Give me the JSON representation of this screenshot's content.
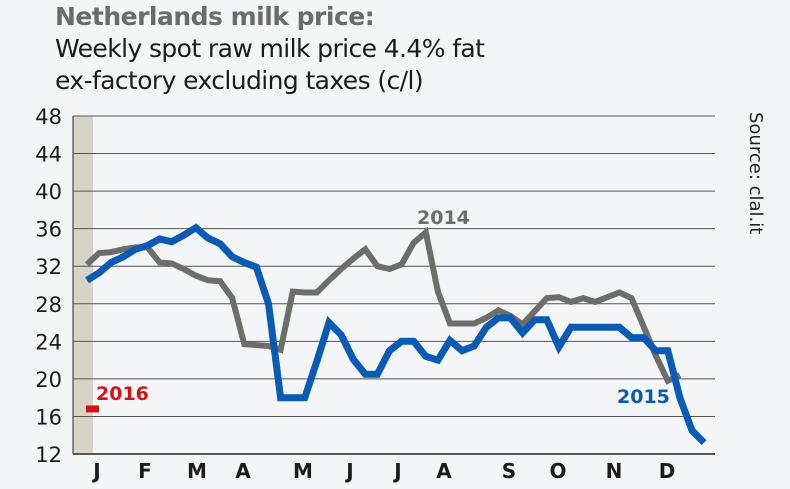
{
  "chart_data": {
    "type": "line",
    "title": "Netherlands milk price:",
    "subtitle": [
      "Weekly spot raw milk price 4.4% fat",
      "ex-factory excluding taxes (c/l)"
    ],
    "source": "Source: clal.it",
    "xlabel": "",
    "ylabel": "",
    "ylim": [
      12,
      48
    ],
    "yticks": [
      "48",
      "44",
      "40",
      "36",
      "32",
      "28",
      "24",
      "20",
      "16",
      "12"
    ],
    "ytick_values": [
      48,
      44,
      40,
      36,
      32,
      28,
      24,
      20,
      16,
      12
    ],
    "xticks": [
      "J",
      "F",
      "M",
      "A",
      "M",
      "J",
      "J",
      "A",
      "S",
      "O",
      "N",
      "D"
    ],
    "x_unit": "week",
    "grid": true,
    "colors": {
      "2014": "#6d6e6b",
      "2015": "#0a5bb5",
      "2016": "#d0121b",
      "band": "#d6d4c6"
    },
    "series": [
      {
        "name": "2014",
        "label": "2014",
        "x": [
          0,
          1,
          2,
          3,
          4,
          5,
          6,
          7,
          8,
          9,
          10,
          11,
          12,
          13,
          14,
          15,
          16,
          17,
          18,
          19,
          20,
          21,
          22,
          23,
          24,
          25,
          26,
          27,
          28,
          29,
          30,
          31,
          32,
          33,
          34,
          35,
          36,
          37,
          38,
          39,
          40,
          41,
          42,
          43,
          44,
          45,
          46,
          47,
          48,
          49
        ],
        "values": [
          32.2,
          33.4,
          33.5,
          33.8,
          34.0,
          34.0,
          32.4,
          32.3,
          31.7,
          31.0,
          30.5,
          30.4,
          28.6,
          23.7,
          23.6,
          23.5,
          23.1,
          29.3,
          29.2,
          29.2,
          30.5,
          31.7,
          32.8,
          33.8,
          32.0,
          31.7,
          32.2,
          34.5,
          35.6,
          29.3,
          25.9,
          25.9,
          25.9,
          26.5,
          27.3,
          26.7,
          25.8,
          27.2,
          28.6,
          28.7,
          28.2,
          28.6,
          28.2,
          28.7,
          29.2,
          28.6,
          25.6,
          22.5,
          19.8,
          20.4
        ]
      },
      {
        "name": "2015",
        "label": "2015",
        "x": [
          0,
          1,
          2,
          3,
          4,
          5,
          6,
          7,
          8,
          9,
          10,
          11,
          12,
          13,
          14,
          15,
          16,
          17,
          18,
          19,
          20,
          21,
          22,
          23,
          24,
          25,
          26,
          27,
          28,
          29,
          30,
          31,
          32,
          33,
          34,
          35,
          36,
          37,
          38,
          39,
          40,
          41,
          42,
          43,
          44,
          45,
          46,
          47,
          48,
          49,
          50,
          51
        ],
        "values": [
          30.5,
          31.3,
          32.4,
          33.0,
          33.8,
          34.2,
          34.9,
          34.6,
          35.3,
          36.1,
          35.0,
          34.4,
          33.0,
          32.4,
          31.9,
          28.0,
          18.0,
          18.0,
          18.0,
          21.9,
          26.0,
          24.7,
          22.1,
          20.5,
          20.5,
          23.0,
          24.0,
          24.0,
          22.4,
          22.0,
          24.1,
          23.0,
          23.5,
          25.5,
          26.5,
          26.5,
          24.9,
          26.3,
          26.3,
          23.4,
          25.5,
          25.5,
          25.5,
          25.5,
          25.5,
          24.4,
          24.4,
          23.0,
          23.0,
          18.0,
          14.5,
          13.2
        ]
      },
      {
        "name": "2016",
        "label": "2016",
        "x": [
          0
        ],
        "values": [
          16.8
        ]
      }
    ]
  }
}
